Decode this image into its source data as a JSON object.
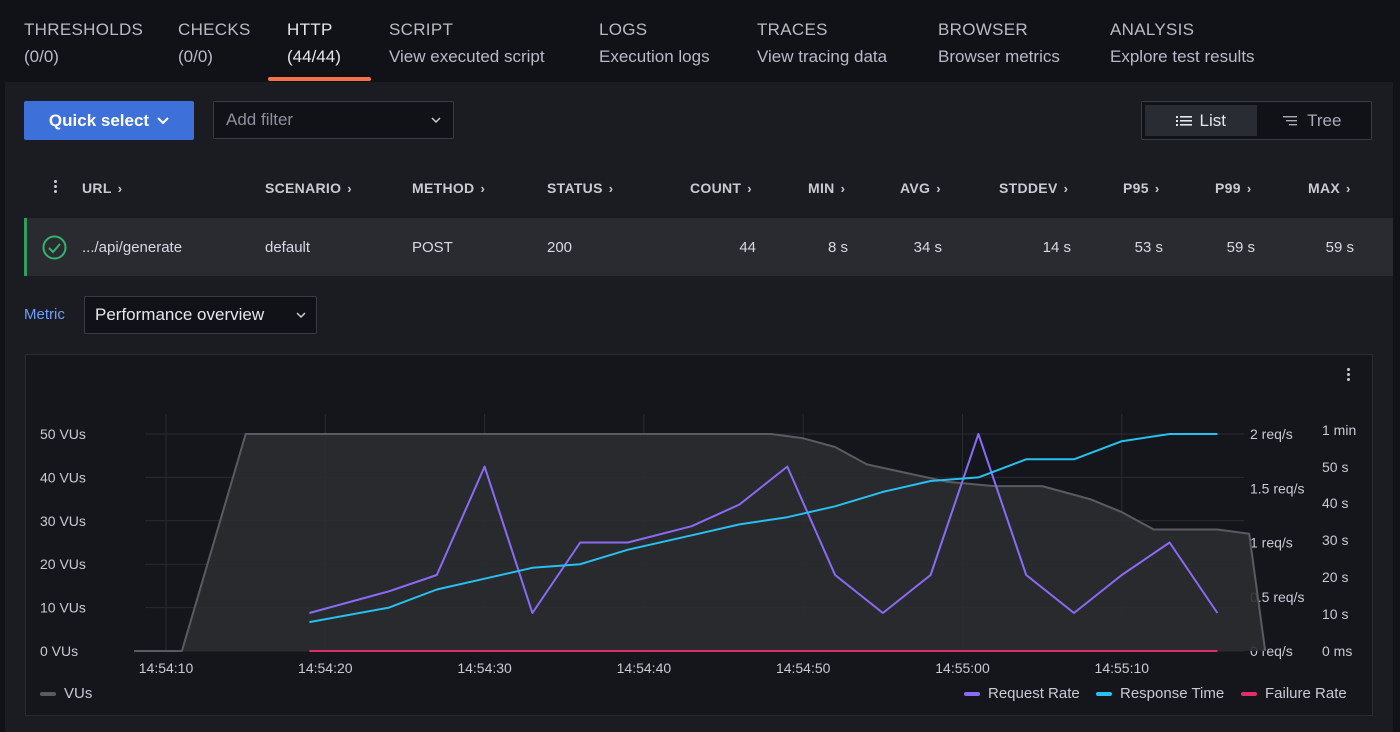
{
  "tabs": [
    {
      "title": "THRESHOLDS",
      "sub": "(0/0)"
    },
    {
      "title": "CHECKS",
      "sub": "(0/0)"
    },
    {
      "title": "HTTP",
      "sub": "(44/44)"
    },
    {
      "title": "SCRIPT",
      "sub": "View executed script"
    },
    {
      "title": "LOGS",
      "sub": "Execution logs"
    },
    {
      "title": "TRACES",
      "sub": "View tracing data"
    },
    {
      "title": "BROWSER",
      "sub": "Browser metrics"
    },
    {
      "title": "ANALYSIS",
      "sub": "Explore test results"
    }
  ],
  "active_tab": "HTTP",
  "accent_color": "#f2734a",
  "toolbar": {
    "quick_select_label": "Quick select",
    "filter_placeholder": "Add filter",
    "view_list_label": "List",
    "view_tree_label": "Tree",
    "active_view": "List"
  },
  "table": {
    "columns": [
      "URL",
      "SCENARIO",
      "METHOD",
      "STATUS",
      "COUNT",
      "MIN",
      "AVG",
      "STDDEV",
      "P95",
      "P99",
      "MAX"
    ],
    "rows": [
      {
        "url": ".../api/generate",
        "scenario": "default",
        "method": "POST",
        "status": "200",
        "count": "44",
        "min": "8 s",
        "avg": "34 s",
        "stddev": "14 s",
        "p95": "53 s",
        "p99": "59 s",
        "max": "59 s",
        "ok": true
      }
    ]
  },
  "metric": {
    "label": "Metric",
    "selected": "Performance overview"
  },
  "chart_data": {
    "type": "line",
    "x_ticks": [
      "14:54:10",
      "14:54:20",
      "14:54:30",
      "14:54:40",
      "14:54:50",
      "14:55:00",
      "14:55:10"
    ],
    "y_left": {
      "ticks": [
        "0 VUs",
        "10 VUs",
        "20 VUs",
        "30 VUs",
        "40 VUs",
        "50 VUs"
      ],
      "range": [
        0,
        50
      ]
    },
    "y_right_rate": {
      "ticks": [
        "0 req/s",
        "0.5 req/s",
        "1 req/s",
        "1.5 req/s",
        "2 req/s"
      ],
      "range": [
        0,
        2
      ]
    },
    "y_right_time": {
      "ticks": [
        "0 ms",
        "10 s",
        "20 s",
        "30 s",
        "40 s",
        "50 s",
        "1 min"
      ],
      "range": [
        0,
        60
      ]
    },
    "grid": true,
    "legend_left": [
      "VUs"
    ],
    "legend_right": [
      "Request Rate",
      "Response Time",
      "Failure Rate"
    ],
    "series": [
      {
        "name": "VUs",
        "axis": "vus",
        "color": "#5a5b62",
        "area": true,
        "x": [
          -2,
          1,
          5,
          12,
          25,
          35,
          38,
          40,
          42,
          44,
          49,
          52,
          55,
          58,
          60,
          62,
          65,
          66,
          68,
          69
        ],
        "y": [
          0,
          0,
          50,
          50,
          50,
          50,
          50,
          49,
          47,
          43,
          39,
          38,
          38,
          35,
          32,
          28,
          28,
          28,
          27,
          0
        ]
      },
      {
        "name": "Request Rate",
        "axis": "rate",
        "color": "#8a6bf5",
        "x": [
          9,
          14,
          17,
          20,
          23,
          26,
          29,
          33,
          36,
          39,
          42,
          45,
          48,
          51,
          54,
          57,
          60,
          63,
          66
        ],
        "y": [
          0.35,
          0.55,
          0.7,
          1.7,
          0.35,
          1.0,
          1.0,
          1.15,
          1.35,
          1.7,
          0.7,
          0.35,
          0.7,
          2.0,
          0.7,
          0.35,
          0.7,
          1.0,
          0.35
        ]
      },
      {
        "name": "Response Time",
        "axis": "time",
        "color": "#27c0f0",
        "x": [
          9,
          14,
          17,
          20,
          23,
          26,
          29,
          33,
          36,
          39,
          42,
          45,
          48,
          51,
          54,
          57,
          60,
          63,
          66
        ],
        "y": [
          8,
          12,
          17,
          20,
          23,
          24,
          28,
          32,
          35,
          37,
          40,
          44,
          47,
          48,
          53,
          53,
          58,
          60,
          60
        ]
      },
      {
        "name": "Failure Rate",
        "axis": "rate",
        "color": "#e02f67",
        "x": [
          9,
          66
        ],
        "y": [
          0,
          0
        ]
      }
    ]
  }
}
